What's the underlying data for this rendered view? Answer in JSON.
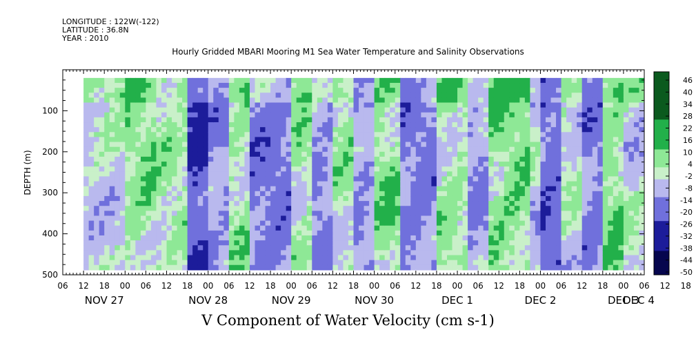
{
  "header": {
    "longitude": "LONGITUDE : 122W(-122)",
    "latitude": "LATITUDE : 36.8N",
    "year": "YEAR : 2010"
  },
  "chart_data": {
    "type": "heatmap",
    "title": "Hourly Gridded MBARI Mooring M1 Sea Water Temperature and Salinity Observations",
    "xlabel": "V Component of Water Velocity (cm s-1)",
    "ylabel": "DEPTH (m)",
    "ylim": [
      500,
      0
    ],
    "y_ticks": [
      100,
      200,
      300,
      400,
      500
    ],
    "x_range_hours": [
      "NOV 27 06",
      "DEC 4 06"
    ],
    "x_hour_ticks": [
      "06",
      "12",
      "18",
      "00",
      "06",
      "12",
      "18",
      "00",
      "06",
      "12",
      "18",
      "00",
      "06",
      "12",
      "18",
      "00",
      "06",
      "12",
      "18",
      "00",
      "06",
      "12",
      "18",
      "00",
      "06",
      "12",
      "18",
      "00",
      "06",
      "12",
      "18",
      "00",
      "06"
    ],
    "x_day_labels": [
      "NOV 27",
      "NOV 28",
      "NOV 29",
      "NOV 30",
      "DEC  1",
      "DEC  2",
      "DEC  3",
      "DEC 4"
    ],
    "colorbar": {
      "levels": [
        "46",
        "40",
        "34",
        "28",
        "22",
        "16",
        "10",
        "4",
        "-2",
        "-8",
        "-14",
        "-20",
        "-26",
        "-32",
        "-38",
        "-44",
        "-50"
      ],
      "range": [
        -50,
        50
      ]
    },
    "data_coverage": {
      "start_hour": 6,
      "end_hour": 168,
      "top_depth": 20,
      "bottom_depth": 488
    },
    "column_bands": [
      {
        "start_hour": 6,
        "end_hour": 18,
        "value": -3
      },
      {
        "start_hour": 18,
        "end_hour": 27,
        "value": 6
      },
      {
        "start_hour": 27,
        "end_hour": 36,
        "value": 2
      },
      {
        "start_hour": 36,
        "end_hour": 42,
        "value": -24
      },
      {
        "start_hour": 42,
        "end_hour": 48,
        "value": -12
      },
      {
        "start_hour": 48,
        "end_hour": 54,
        "value": 4
      },
      {
        "start_hour": 54,
        "end_hour": 66,
        "value": -15
      },
      {
        "start_hour": 66,
        "end_hour": 72,
        "value": 3
      },
      {
        "start_hour": 72,
        "end_hour": 78,
        "value": -12
      },
      {
        "start_hour": 78,
        "end_hour": 84,
        "value": 2
      },
      {
        "start_hour": 84,
        "end_hour": 90,
        "value": -12
      },
      {
        "start_hour": 90,
        "end_hour": 97,
        "value": 6
      },
      {
        "start_hour": 97,
        "end_hour": 108,
        "value": -15
      },
      {
        "start_hour": 108,
        "end_hour": 116,
        "value": 4
      },
      {
        "start_hour": 116,
        "end_hour": 122,
        "value": -10
      },
      {
        "start_hour": 122,
        "end_hour": 128,
        "value": 7
      },
      {
        "start_hour": 128,
        "end_hour": 134,
        "value": 8
      },
      {
        "start_hour": 134,
        "end_hour": 138,
        "value": -5
      },
      {
        "start_hour": 138,
        "end_hour": 144,
        "value": -20
      },
      {
        "start_hour": 144,
        "end_hour": 150,
        "value": -2
      },
      {
        "start_hour": 150,
        "end_hour": 156,
        "value": -16
      },
      {
        "start_hour": 156,
        "end_hour": 162,
        "value": 7
      },
      {
        "start_hour": 162,
        "end_hour": 168,
        "value": -2
      }
    ],
    "colors": {
      "strong_positive": "#0b5a1e",
      "positive": "#22b04a",
      "light_positive": "#8ee896",
      "near_zero": "#c9f0c9",
      "light_negative": "#b9b9ee",
      "negative": "#7070dc",
      "strong_negative": "#1c1c9a",
      "deep_negative": "#06064e"
    }
  }
}
